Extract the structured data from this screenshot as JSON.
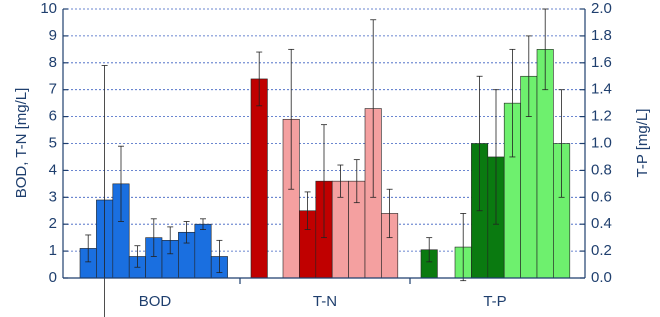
{
  "chart_data": {
    "type": "bar",
    "y_label": "BOD, T-N [mg/L]",
    "y2_label": "T-P [mg/L]",
    "categories": [
      "BOD",
      "T-N",
      "T-P"
    ],
    "ylim": [
      0,
      10
    ],
    "yticks": [
      0,
      1,
      2,
      3,
      4,
      5,
      6,
      7,
      8,
      9,
      10
    ],
    "y2lim": [
      0,
      2
    ],
    "y2ticks": [
      {
        "value": 0,
        "label": "0.0"
      },
      {
        "value": 0.2,
        "label": "0.2"
      },
      {
        "value": 0.4,
        "label": "0.4"
      },
      {
        "value": 0.6,
        "label": "0.6"
      },
      {
        "value": 0.8,
        "label": "0.8"
      },
      {
        "value": 1,
        "label": "1.0"
      },
      {
        "value": 1.2,
        "label": "1.2"
      },
      {
        "value": 1.4,
        "label": "1.4"
      },
      {
        "value": 1.6,
        "label": "1.6"
      },
      {
        "value": 1.8,
        "label": "1.8"
      },
      {
        "value": 2,
        "label": "2.0"
      }
    ],
    "grid": true,
    "groups": [
      {
        "axis": "y",
        "bars": [
          {
            "value": 1.1,
            "error": 0.5,
            "color": "#1a6fe0"
          },
          {
            "value": 2.9,
            "error": 5.0,
            "color": "#1a6fe0"
          },
          {
            "value": 3.5,
            "error": 1.4,
            "color": "#1a6fe0"
          },
          {
            "value": 0.8,
            "error": 0.4,
            "color": "#1a6fe0"
          },
          {
            "value": 1.5,
            "error": 0.7,
            "color": "#1a6fe0"
          },
          {
            "value": 1.4,
            "error": 0.5,
            "color": "#1a6fe0"
          },
          {
            "value": 1.7,
            "error": 0.4,
            "color": "#1a6fe0"
          },
          {
            "value": 2.0,
            "error": 0.2,
            "color": "#1a6fe0"
          },
          {
            "value": 0.8,
            "error": 0.6,
            "color": "#1a6fe0"
          }
        ]
      },
      {
        "axis": "y",
        "bars": [
          {
            "value": 7.4,
            "error": 1.0,
            "color": "#c00000"
          },
          {
            "value": 5.9,
            "error": 2.6,
            "color": "#f4a0a0"
          },
          {
            "value": 2.5,
            "error": 0.7,
            "color": "#c00000"
          },
          {
            "value": 3.6,
            "error": 2.1,
            "color": "#c00000"
          },
          {
            "value": 3.6,
            "error": 0.6,
            "color": "#f4a0a0"
          },
          {
            "value": 3.6,
            "error": 0.8,
            "color": "#f4a0a0"
          },
          {
            "value": 6.3,
            "error": 3.3,
            "color": "#f4a0a0"
          },
          {
            "value": 2.4,
            "error": 0.9,
            "color": "#f4a0a0"
          }
        ]
      },
      {
        "axis": "y2",
        "bars": [
          {
            "value": 0.21,
            "error": 0.09,
            "color": "#0a7a10"
          },
          {
            "value": 0.23,
            "error": 0.25,
            "color": "#6ef06e"
          },
          {
            "value": 1.0,
            "error": 0.5,
            "color": "#0a7a10"
          },
          {
            "value": 0.9,
            "error": 0.5,
            "color": "#0a7a10"
          },
          {
            "value": 1.3,
            "error": 0.4,
            "color": "#6ef06e"
          },
          {
            "value": 1.5,
            "error": 0.3,
            "color": "#6ef06e"
          },
          {
            "value": 1.7,
            "error": 0.3,
            "color": "#6ef06e"
          },
          {
            "value": 1.0,
            "error": 0.4,
            "color": "#6ef06e"
          }
        ]
      }
    ]
  }
}
